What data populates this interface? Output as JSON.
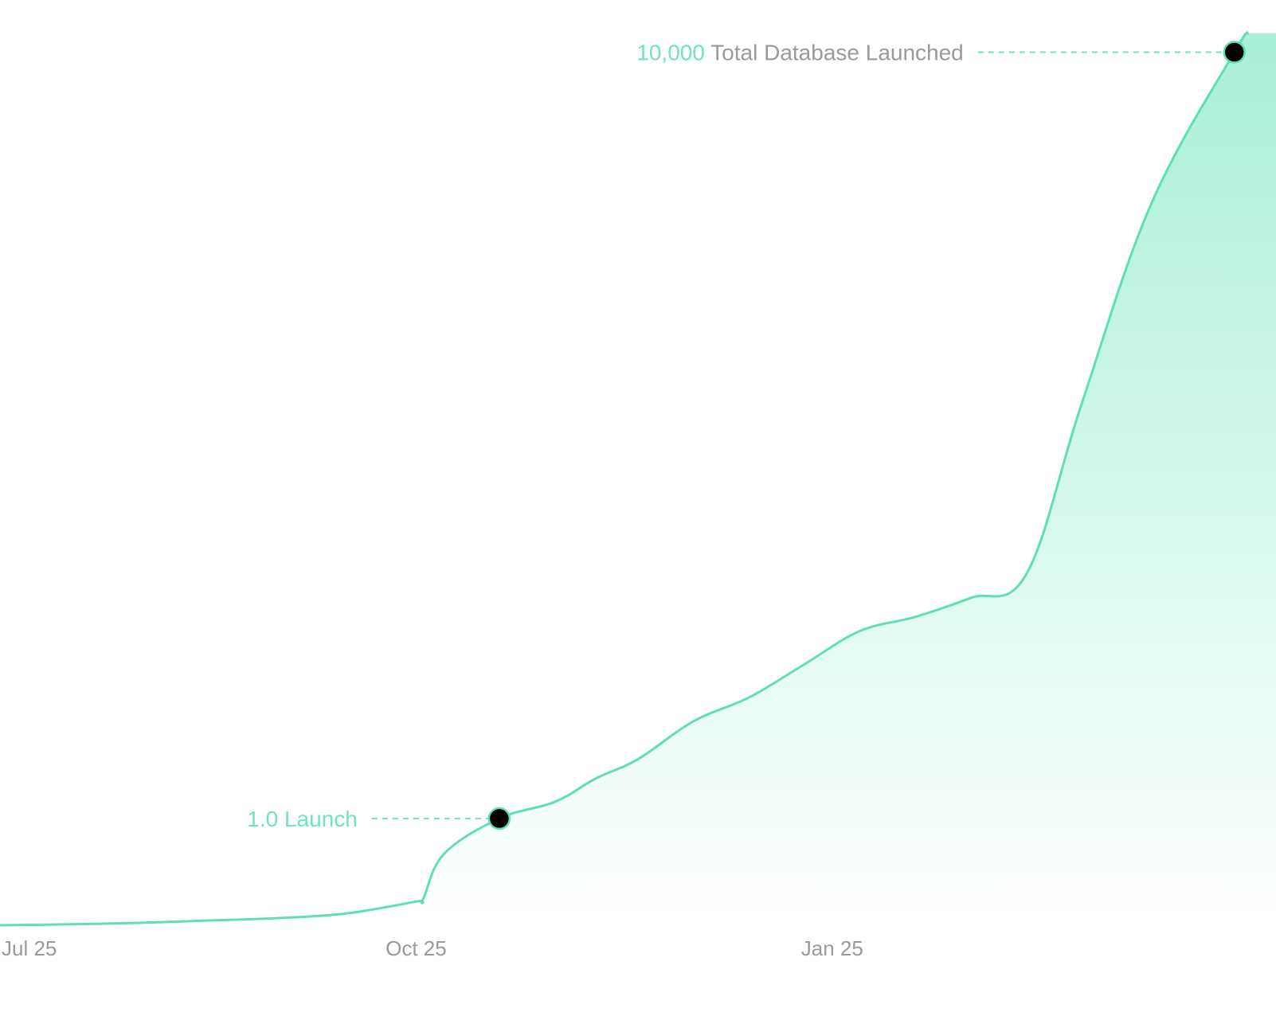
{
  "chart_data": {
    "type": "area",
    "title": "",
    "xlabel": "",
    "ylabel": "",
    "x_ticks": [
      "Jul 25",
      "Oct 25",
      "Jan 25"
    ],
    "grid": false,
    "legend": "none",
    "series": [
      {
        "color": "#5ee0b0",
        "x": [
          0,
          0.5,
          1.0,
          1.5,
          2.0,
          2.5,
          3.0,
          3.05,
          3.2,
          3.6,
          4.0,
          4.3,
          4.6,
          5.0,
          5.4,
          5.8,
          6.2,
          6.6,
          7.0,
          7.4,
          7.8,
          8.3,
          8.9,
          9.0
        ],
        "values": [
          0,
          0.02,
          0.05,
          0.1,
          0.15,
          0.25,
          0.5,
          0.55,
          1.5,
          2.25,
          2.6,
          3.1,
          3.5,
          4.3,
          4.8,
          5.5,
          6.2,
          6.5,
          6.9,
          7.4,
          11.0,
          15.2,
          18.4,
          18.8
        ]
      }
    ],
    "annotations": [
      {
        "number": "",
        "text": "1.0 Launch",
        "x": 3.6,
        "y": 2.25
      },
      {
        "number": "10,000",
        "text": " Total Database Launched",
        "x": 8.9,
        "y": 18.4
      }
    ],
    "colors": {
      "line": "#5ee0b0",
      "fill_top": "#a8f0d6",
      "fill_bottom": "#ffffff",
      "marker": "#000000",
      "annotation_accent": "#6fe4bd",
      "annotation_text": "#9a9a9a",
      "tick_text": "#9a9a9a"
    }
  }
}
